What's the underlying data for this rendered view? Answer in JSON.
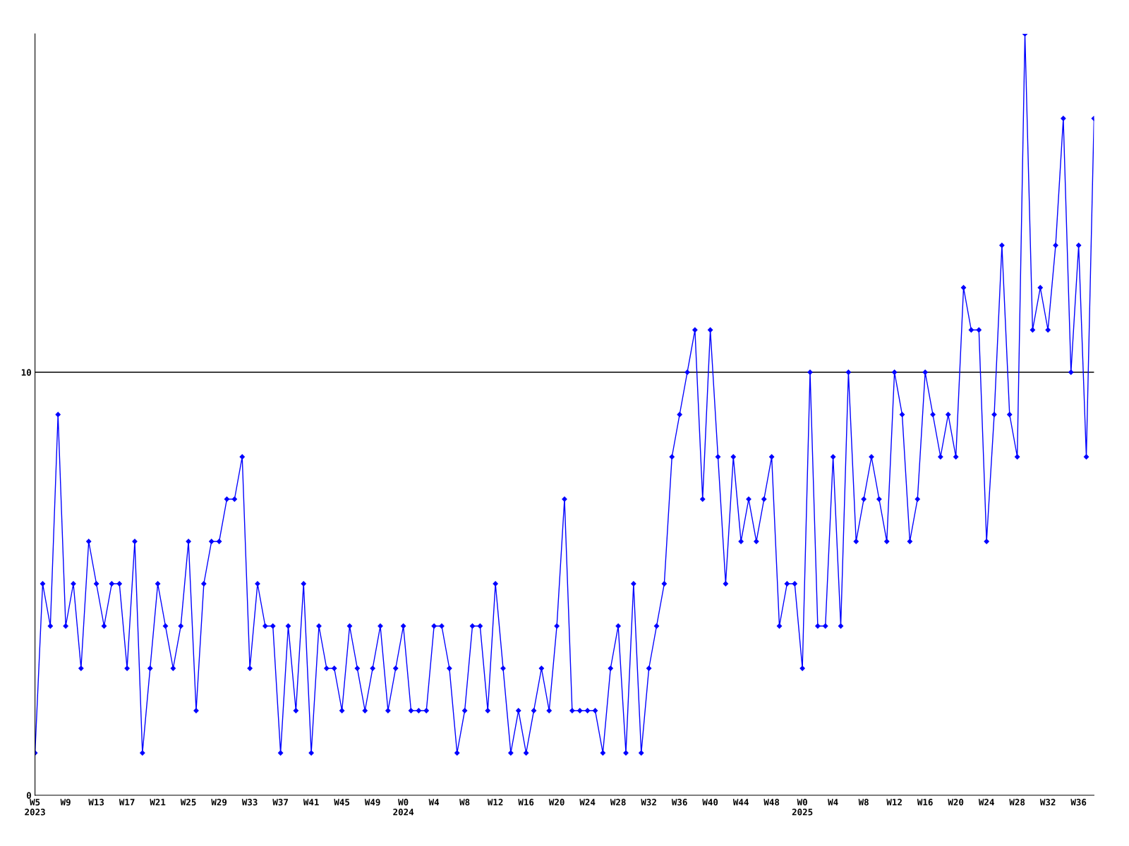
{
  "chart_data": {
    "type": "line",
    "categories": [
      "W5\n2023",
      null,
      null,
      null,
      "W9",
      null,
      null,
      null,
      "W13",
      null,
      null,
      null,
      "W17",
      null,
      null,
      null,
      "W21",
      null,
      null,
      null,
      "W25",
      null,
      null,
      null,
      "W29",
      null,
      null,
      null,
      "W33",
      null,
      null,
      null,
      "W37",
      null,
      null,
      null,
      "W41",
      null,
      null,
      null,
      "W45",
      null,
      null,
      null,
      "W49",
      null,
      null,
      null,
      "W0\n2024",
      null,
      null,
      null,
      "W4",
      null,
      null,
      null,
      "W8",
      null,
      null,
      null,
      "W12",
      null,
      null,
      null,
      "W16",
      null,
      null,
      null,
      "W20",
      null,
      null,
      null,
      "W24",
      null,
      null,
      null,
      "W28",
      null,
      null,
      null,
      "W32",
      null,
      null,
      null,
      "W36",
      null,
      null,
      null,
      "W40",
      null,
      null,
      null,
      "W44",
      null,
      null,
      null,
      "W48",
      null,
      null,
      null,
      "W0\n2025",
      null,
      null,
      null,
      "W4",
      null,
      null,
      null,
      "W8",
      null,
      null,
      null,
      "W12",
      null,
      null,
      null,
      "W16",
      null,
      null,
      null,
      "W20",
      null,
      null,
      null,
      "W24",
      null,
      null,
      null,
      "W28",
      null,
      null,
      null,
      "W32",
      null,
      null,
      null,
      "W36",
      null,
      null
    ],
    "series": [
      {
        "color": "#0000ff",
        "values": [
          1,
          5,
          4,
          9,
          4,
          5,
          3,
          6,
          5,
          4,
          5,
          5,
          3,
          6,
          1,
          3,
          5,
          4,
          3,
          4,
          6,
          2,
          5,
          6,
          6,
          7,
          7,
          8,
          3,
          5,
          4,
          4,
          1,
          4,
          2,
          5,
          1,
          4,
          3,
          3,
          2,
          4,
          3,
          2,
          3,
          4,
          2,
          3,
          4,
          2,
          2,
          2,
          4,
          4,
          3,
          1,
          2,
          4,
          4,
          2,
          5,
          3,
          1,
          2,
          1,
          2,
          3,
          2,
          4,
          7,
          2,
          2,
          2,
          2,
          1,
          3,
          4,
          1,
          5,
          1,
          3,
          4,
          5,
          8,
          9,
          10,
          11,
          7,
          11,
          8,
          5,
          8,
          6,
          7,
          6,
          7,
          8,
          4,
          5,
          5,
          3,
          10,
          4,
          4,
          8,
          4,
          10,
          6,
          7,
          8,
          7,
          6,
          10,
          9,
          6,
          7,
          10,
          9,
          8,
          9,
          8,
          12,
          11,
          11,
          6,
          9,
          13,
          9,
          8,
          18,
          11,
          12,
          11,
          13,
          16,
          10,
          13,
          8,
          16
        ]
      }
    ],
    "ylim": [
      0,
      18
    ],
    "yticks": [
      0,
      10
    ],
    "ref_lines": [
      {
        "axis": "y",
        "value": 10,
        "color": "#000000",
        "line_style": "solid"
      }
    ],
    "marker": "diamond",
    "line_style": "solid",
    "grid": false,
    "legend": false
  }
}
